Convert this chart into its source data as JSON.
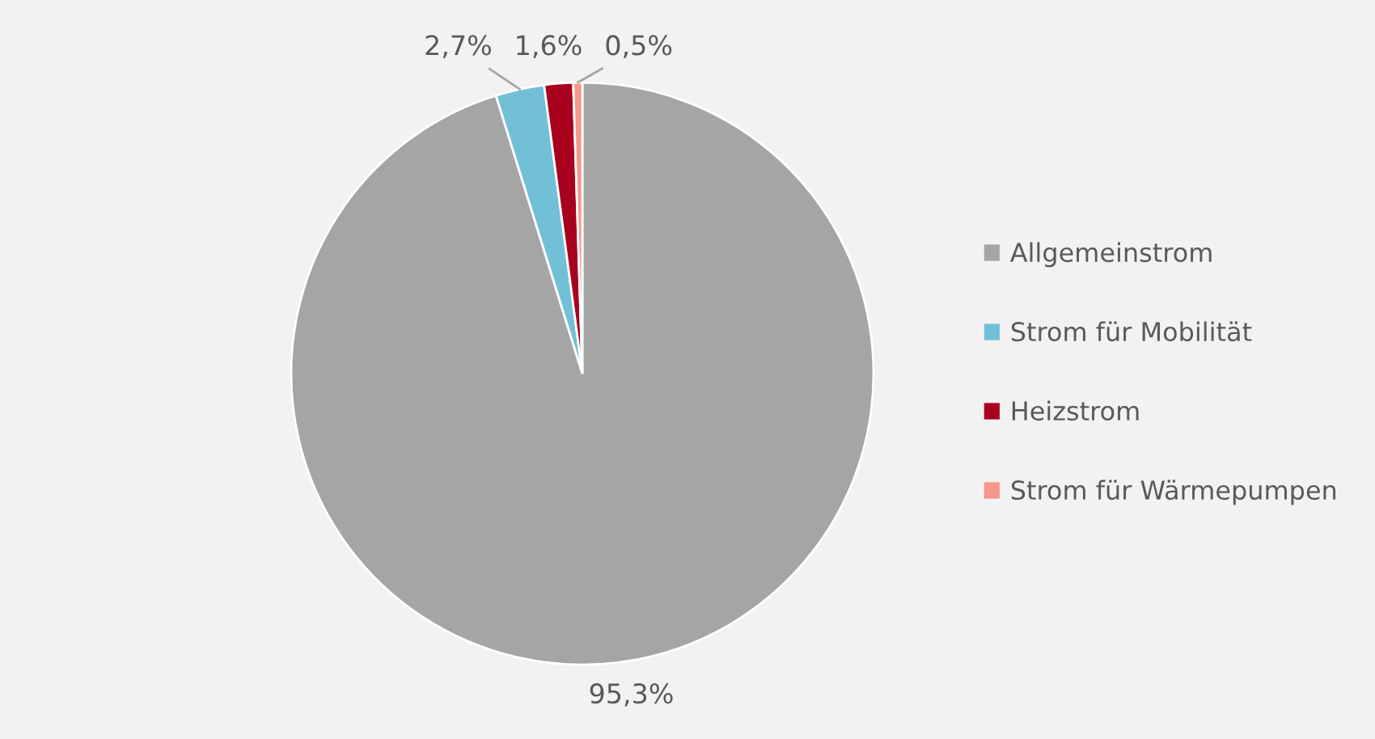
{
  "chart_data": {
    "type": "pie",
    "categories": [
      "Allgemeinstrom",
      "Strom für Mobilität",
      "Heizstrom",
      "Strom für Wärmepumpen"
    ],
    "values": [
      95.3,
      2.7,
      1.6,
      0.5
    ],
    "colors": [
      "#a5a5a5",
      "#72c0d8",
      "#a8001e",
      "#f7968a"
    ],
    "value_labels": [
      "95,3%",
      "2,7%",
      "1,6%",
      "0,5%"
    ],
    "legend": "right"
  }
}
